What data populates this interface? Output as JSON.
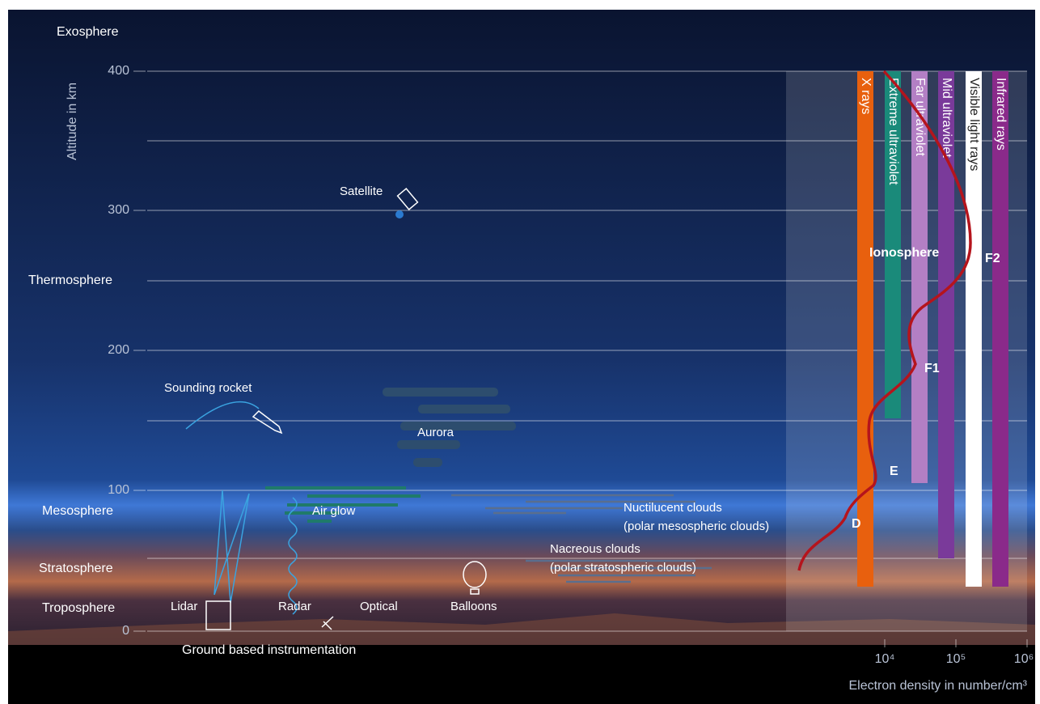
{
  "layers": {
    "exosphere": "Exosphere",
    "thermosphere": "Thermosphere",
    "mesosphere": "Mesosphere",
    "stratosphere": "Stratosphere",
    "troposphere": "Troposphere"
  },
  "altitude_axis": {
    "title": "Altitude in km",
    "ticks": [
      "400",
      "300",
      "200",
      "100",
      "0"
    ]
  },
  "phenomena": {
    "satellite": "Satellite",
    "rocket": "Sounding rocket",
    "aurora": "Aurora",
    "airglow": "Air glow",
    "noctilucent": "Nuctilucent clouds",
    "noctilucent_note": "(polar mesospheric clouds)",
    "nacreous": "Nacreous clouds",
    "nacreous_note": "(polar stratospheric clouds)"
  },
  "instruments": {
    "lidar": "Lidar",
    "radar": "Radar",
    "optical": "Optical",
    "balloons": "Balloons",
    "caption": "Ground based instrumentation"
  },
  "radiation": [
    "X rays",
    "Extreme ultraviolet",
    "Far ultraviolet",
    "Mid ultraviolet",
    "Visible light rays",
    "Infrared rays"
  ],
  "ionosphere": {
    "title": "Ionosphere",
    "layers": [
      "F2",
      "F1",
      "E",
      "D"
    ]
  },
  "density_axis": {
    "ticks": [
      "10⁴",
      "10⁵",
      "10⁶"
    ],
    "title": "Electron density in number/cm³"
  }
}
